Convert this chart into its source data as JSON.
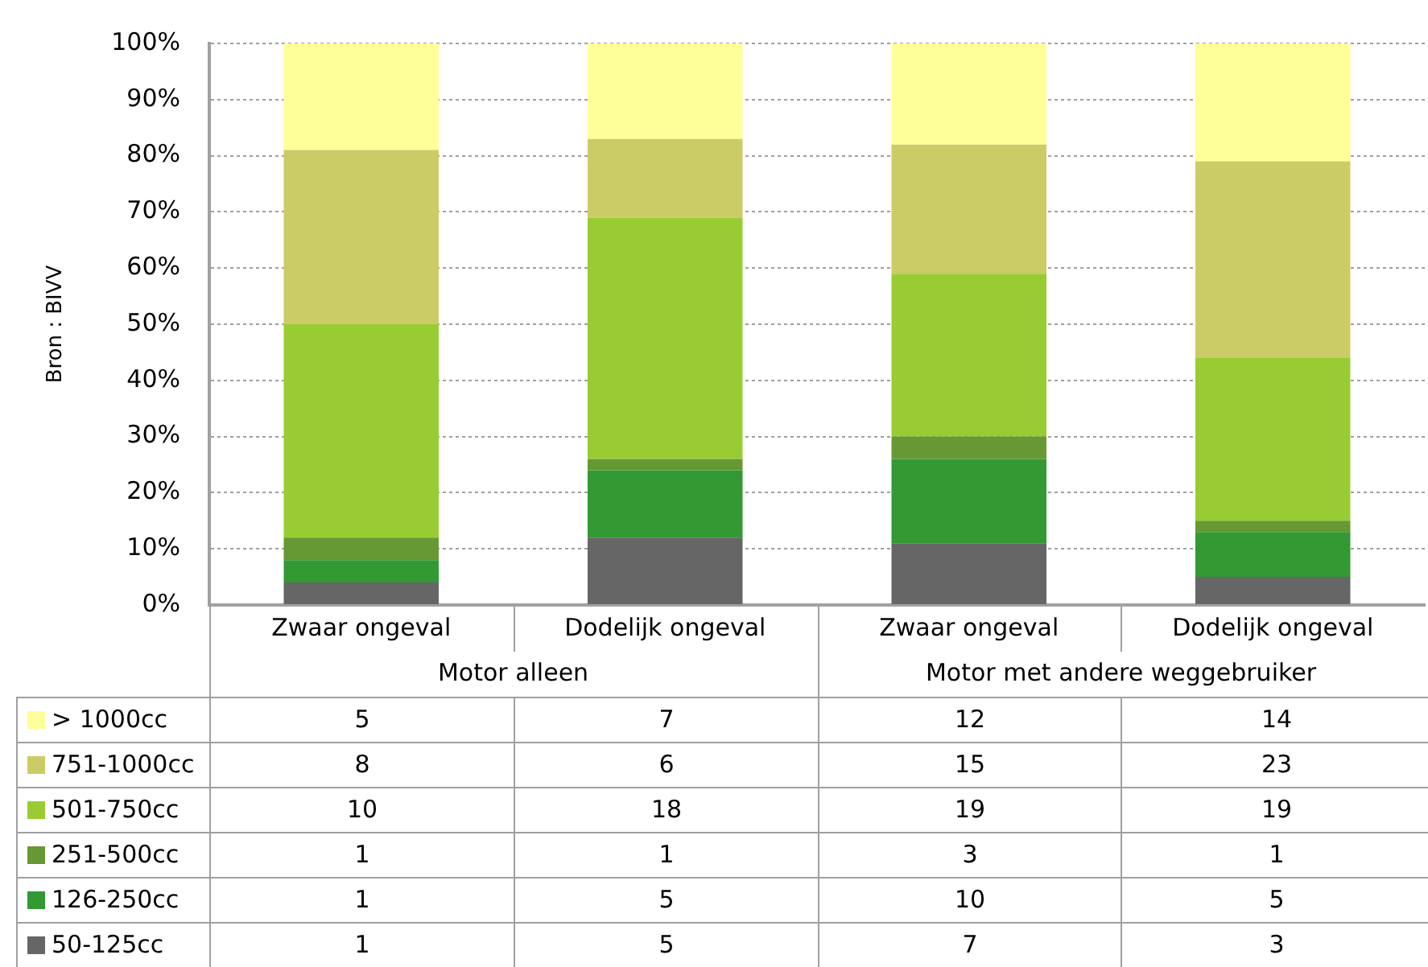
{
  "chart_data": [
    {
      "type": "bar",
      "stacked": true,
      "categories": [
        "Zwaar ongeval",
        "Dodelijk ongeval",
        "Zwaar ongeval",
        "Dodelijk ongeval"
      ],
      "ylabel": "Bron : BIVV",
      "annotations": [
        "Motor alleen",
        "Motor met andere weggebruiker"
      ],
      "ylim": [
        0,
        100
      ],
      "yticks": [
        {
          "value": 0,
          "label": "0%"
        },
        {
          "value": 10,
          "label": "10%"
        },
        {
          "value": 20,
          "label": "20%"
        },
        {
          "value": 30,
          "label": "30%"
        },
        {
          "value": 40,
          "label": "40%"
        },
        {
          "value": 50,
          "label": "50%"
        },
        {
          "value": 60,
          "label": "60%"
        },
        {
          "value": 70,
          "label": "70%"
        },
        {
          "value": 80,
          "label": "80%"
        },
        {
          "value": 90,
          "label": "90%"
        },
        {
          "value": 100,
          "label": "100%"
        }
      ],
      "grid": "y",
      "legend": "bottom",
      "series": [
        {
          "name": "50-125cc",
          "color": "#666666",
          "values": [
            4,
            12,
            11,
            5
          ]
        },
        {
          "name": "126-250cc",
          "color": "#339933",
          "values": [
            4,
            12,
            15,
            8
          ]
        },
        {
          "name": "251-500cc",
          "color": "#669933",
          "values": [
            4,
            2,
            4,
            2
          ]
        },
        {
          "name": "501-750cc",
          "color": "#99cc33",
          "values": [
            38,
            43,
            29,
            29
          ]
        },
        {
          "name": "751-1000cc",
          "color": "#cccc66",
          "values": [
            31,
            14,
            23,
            35
          ]
        },
        {
          "name": "> 1000cc",
          "color": "#ffff99",
          "values": [
            19,
            17,
            18,
            21
          ]
        }
      ]
    },
    {
      "type": "other",
      "annotations": [
        "5",
        "7",
        "12",
        "14",
        "8",
        "6",
        "15",
        "23",
        "10",
        "18",
        "19",
        "19",
        "1",
        "1",
        "3",
        "1",
        "1",
        "5",
        "10",
        "5",
        "1",
        "5",
        "7",
        "3"
      ]
    }
  ]
}
